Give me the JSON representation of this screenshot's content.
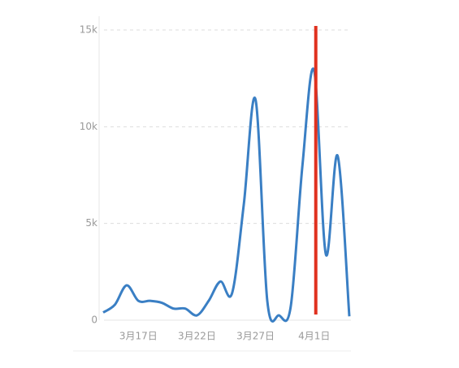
{
  "chart_data": {
    "type": "line",
    "categories": [
      null,
      null,
      null,
      "3月17日",
      null,
      null,
      null,
      null,
      "3月22日",
      null,
      null,
      null,
      null,
      "3月27日",
      null,
      null,
      null,
      null,
      "4月1日",
      null,
      null,
      null
    ],
    "series": [
      {
        "color": "#3a7fc4",
        "values": [
          400,
          800,
          1800,
          1000,
          1000,
          900,
          600,
          600,
          250,
          1000,
          2000,
          1400,
          6000,
          11400,
          1000,
          250,
          700,
          8000,
          12900,
          3400,
          8500,
          200
        ]
      }
    ],
    "ylim": [
      0,
      15000
    ],
    "yticks": [
      0,
      {
        "value": 5000,
        "label": "5k"
      },
      {
        "value": 10000,
        "label": "10k"
      },
      {
        "value": 15000,
        "label": "15k"
      }
    ],
    "grid": true,
    "highlight_index": 18,
    "highlight_color": "#e0311f"
  }
}
